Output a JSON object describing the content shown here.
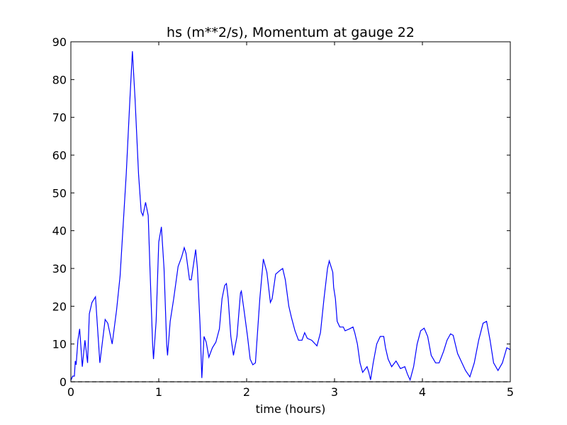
{
  "chart_data": {
    "type": "line",
    "title": "hs (m**2/s), Momentum at gauge 22",
    "xlabel": "time (hours)",
    "xlim": [
      0,
      5
    ],
    "ylim": [
      0,
      90
    ],
    "xticks": [
      0,
      1,
      2,
      3,
      4,
      5
    ],
    "yticks": [
      0,
      10,
      20,
      30,
      40,
      50,
      60,
      70,
      80,
      90
    ],
    "series": [
      {
        "color": "#0000ff",
        "style": "solid",
        "x": [
          0,
          0.02,
          0.04,
          0.05,
          0.06,
          0.08,
          0.1,
          0.13,
          0.16,
          0.19,
          0.21,
          0.24,
          0.28,
          0.33,
          0.39,
          0.42,
          0.47,
          0.52,
          0.56,
          0.63,
          0.67,
          0.7,
          0.73,
          0.77,
          0.8,
          0.82,
          0.85,
          0.88,
          0.9,
          0.93,
          0.94,
          0.97,
          1.0,
          1.03,
          1.06,
          1.09,
          1.1,
          1.13,
          1.17,
          1.22,
          1.26,
          1.29,
          1.31,
          1.35,
          1.37,
          1.42,
          1.44,
          1.47,
          1.49,
          1.515,
          1.54,
          1.57,
          1.61,
          1.65,
          1.69,
          1.72,
          1.75,
          1.77,
          1.79,
          1.82,
          1.85,
          1.89,
          1.93,
          1.94,
          1.97,
          2.01,
          2.04,
          2.07,
          2.1,
          2.15,
          2.19,
          2.23,
          2.27,
          2.29,
          2.33,
          2.38,
          2.41,
          2.44,
          2.48,
          2.51,
          2.55,
          2.59,
          2.63,
          2.66,
          2.69,
          2.74,
          2.8,
          2.84,
          2.88,
          2.92,
          2.94,
          2.98,
          2.99,
          3.01,
          3.03,
          3.06,
          3.1,
          3.12,
          3.17,
          3.21,
          3.23,
          3.26,
          3.29,
          3.32,
          3.37,
          3.39,
          3.41,
          3.44,
          3.48,
          3.52,
          3.56,
          3.58,
          3.61,
          3.65,
          3.7,
          3.75,
          3.8,
          3.83,
          3.86,
          3.9,
          3.94,
          3.98,
          4.02,
          4.06,
          4.1,
          4.15,
          4.19,
          4.24,
          4.28,
          4.32,
          4.35,
          4.4,
          4.45,
          4.49,
          4.54,
          4.59,
          4.64,
          4.69,
          4.73,
          4.77,
          4.81,
          4.86,
          4.91,
          4.96,
          5.0
        ],
        "values": [
          0.4,
          1.5,
          1.5,
          5.5,
          4.5,
          11,
          14,
          4,
          11,
          5,
          18,
          21,
          22.5,
          5,
          16.5,
          15.5,
          10,
          19,
          28,
          55,
          74,
          87.5,
          75,
          55,
          45,
          44,
          47.5,
          44,
          30,
          10,
          6,
          16,
          37,
          41,
          30,
          10,
          7,
          16,
          22,
          30.5,
          33,
          35.5,
          34,
          27,
          27,
          35,
          30,
          15,
          1,
          12,
          10.5,
          6.5,
          9,
          10.5,
          14,
          22,
          25.5,
          26,
          22,
          12,
          7,
          12,
          23.5,
          24,
          19,
          12,
          6,
          4.5,
          5,
          22,
          32.5,
          29,
          21,
          22,
          28.5,
          29.5,
          30,
          27,
          20,
          17,
          13.5,
          11,
          11,
          13,
          11.5,
          11,
          9.5,
          13,
          22,
          30,
          32,
          29,
          25,
          22,
          16,
          14.5,
          14.5,
          13.5,
          14,
          14.5,
          13,
          10,
          5,
          2.5,
          4,
          2.5,
          0.5,
          5,
          10,
          12,
          12,
          9,
          6,
          4,
          5.5,
          3.5,
          4,
          2,
          0.5,
          4,
          10,
          13.5,
          14.2,
          12,
          7,
          5,
          5,
          8,
          11,
          12.7,
          12.3,
          7.5,
          5,
          3,
          1.3,
          5,
          11,
          15.5,
          16,
          11,
          5,
          3,
          5,
          9,
          8.5
        ]
      },
      {
        "color": "#000000",
        "style": "dashed",
        "x": [
          0,
          5
        ],
        "values": [
          0,
          0
        ]
      }
    ]
  }
}
